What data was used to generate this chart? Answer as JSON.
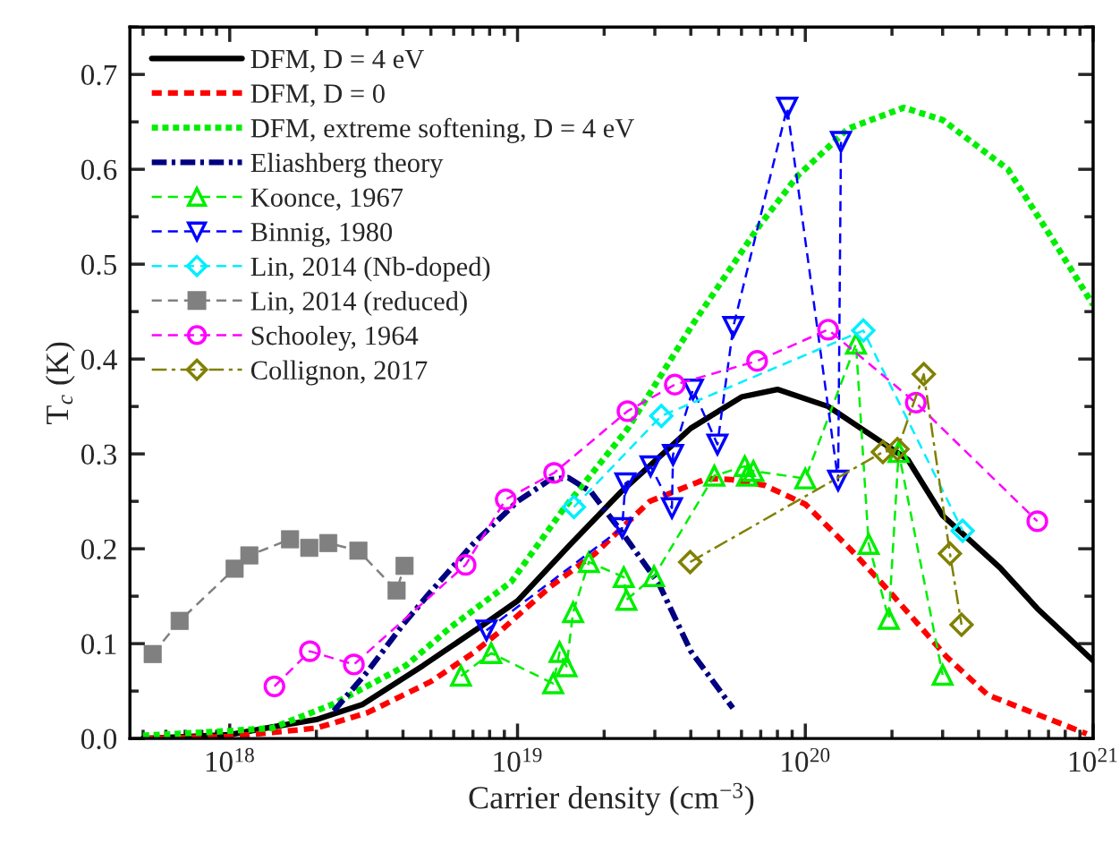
{
  "chart_data": {
    "type": "line",
    "xlabel": "Carrier density (cm$^{−3}$)",
    "ylabel": "T$_{c}$ (K)",
    "log": "x",
    "xlim": [
      4.5e+17,
      1e+21
    ],
    "ylim": [
      0,
      0.75
    ],
    "xticks": [
      {
        "value": 1e+18,
        "label": "10$^{18}$"
      },
      {
        "value": 1e+19,
        "label": "10$^{19}$"
      },
      {
        "value": 1e+20,
        "label": "10$^{20}$"
      },
      {
        "value": 1e+21,
        "label": "10$^{21}$"
      }
    ],
    "yticks": [
      {
        "value": 0,
        "label": "0.0"
      },
      {
        "value": 0.1,
        "label": "0.1"
      },
      {
        "value": 0.2,
        "label": "0.2"
      },
      {
        "value": 0.3,
        "label": "0.3"
      },
      {
        "value": 0.4,
        "label": "0.4"
      },
      {
        "value": 0.5,
        "label": "0.5"
      },
      {
        "value": 0.6,
        "label": "0.6"
      },
      {
        "value": 0.7,
        "label": "0.7"
      }
    ],
    "grid": false,
    "legend": "top left",
    "series": [
      {
        "name": "DFM, D = 4 eV",
        "color": "#000000",
        "marker": "none",
        "line_style": "solid",
        "x": [
          5e+17,
          1e+18,
          1.4e+18,
          2e+18,
          2.9e+18,
          4.7e+18,
          7.7e+18,
          1e+19,
          1.53e+19,
          2.29e+19,
          4e+19,
          6e+19,
          8e+19,
          1.2e+20,
          2.27e+20,
          3e+20,
          4.75e+20,
          6.4e+20,
          1e+21
        ],
        "values": [
          0.0,
          0.004,
          0.012,
          0.02,
          0.036,
          0.077,
          0.121,
          0.145,
          0.205,
          0.26,
          0.327,
          0.36,
          0.368,
          0.35,
          0.294,
          0.235,
          0.18,
          0.137,
          0.082
        ]
      },
      {
        "name": "DFM, D = 0",
        "color": "#ff0000",
        "marker": "none",
        "line_style": "dashed",
        "x": [
          5e+17,
          1e+18,
          2e+18,
          3e+18,
          5e+18,
          7e+18,
          8.7e+18,
          1.3e+19,
          1.86e+19,
          2.88e+19,
          4.55e+19,
          5.5e+19,
          7.2e+19,
          1e+20,
          1.43e+20,
          2e+20,
          3.1e+20,
          4.3e+20,
          7.1e+20,
          9.5e+20
        ],
        "values": [
          0.0,
          0.002,
          0.011,
          0.027,
          0.06,
          0.09,
          0.113,
          0.16,
          0.195,
          0.25,
          0.274,
          0.273,
          0.267,
          0.247,
          0.2,
          0.152,
          0.086,
          0.046,
          0.02,
          0.005
        ]
      },
      {
        "name": "DFM, extreme softening, D = 4 eV",
        "color": "#00ee00",
        "marker": "none",
        "line_style": "dotted",
        "x": [
          5e+17,
          1e+18,
          1.4e+18,
          2.28e+18,
          4.1e+18,
          5.9e+18,
          9.5e+18,
          1.43e+19,
          2.42e+19,
          4.07e+19,
          6.9e+19,
          9.4e+19,
          1.41e+20,
          2.2e+20,
          3e+20,
          5.06e+20,
          7.1e+20,
          1e+21
        ],
        "values": [
          0.003,
          0.008,
          0.011,
          0.036,
          0.077,
          0.118,
          0.165,
          0.24,
          0.327,
          0.437,
          0.54,
          0.593,
          0.643,
          0.665,
          0.652,
          0.6,
          0.53,
          0.457
        ]
      },
      {
        "name": "Eliashberg theory",
        "color": "#000080",
        "marker": "none",
        "line_style": "dashdot",
        "x": [
          2.3e+18,
          3e+18,
          4e+18,
          5e+18,
          7e+18,
          1e+19,
          1.3e+19,
          1.5e+19,
          1.8e+19,
          2.31e+19,
          3.1e+19,
          4e+19,
          5.6e+19
        ],
        "values": [
          0.029,
          0.07,
          0.12,
          0.155,
          0.205,
          0.25,
          0.273,
          0.275,
          0.26,
          0.217,
          0.163,
          0.092,
          0.032
        ]
      },
      {
        "name": "Koonce, 1967",
        "color": "#00ee00",
        "marker": "triangle",
        "line_style": "dashed",
        "x": [
          6.36e+18,
          8.1e+18,
          1.33e+19,
          1.4e+19,
          1.48e+19,
          1.56e+19,
          1.77e+19,
          2.34e+19,
          2.39e+19,
          2.98e+19,
          4.83e+19,
          6.16e+19,
          6.27e+19,
          6.6e+19,
          1e+20,
          1.5e+20,
          1.66e+20,
          1.95e+20,
          2.11e+20,
          3e+20
        ],
        "values": [
          0.066,
          0.09,
          0.058,
          0.091,
          0.076,
          0.133,
          0.186,
          0.17,
          0.146,
          0.171,
          0.277,
          0.287,
          0.277,
          0.282,
          0.274,
          0.416,
          0.205,
          0.126,
          0.302,
          0.067
        ]
      },
      {
        "name": "Binnig, 1980",
        "color": "#0000ff",
        "marker": "triangle_down",
        "line_style": "dashed",
        "x": [
          7.8e+18,
          2.31e+19,
          2.37e+19,
          2.9e+19,
          3.44e+19,
          3.47e+19,
          4.07e+19,
          4.95e+19,
          5.62e+19,
          8.65e+19,
          1.3e+20,
          1.33e+20
        ],
        "values": [
          0.114,
          0.222,
          0.269,
          0.287,
          0.243,
          0.299,
          0.368,
          0.31,
          0.434,
          0.665,
          0.272,
          0.629
        ]
      },
      {
        "name": "Lin, 2014 (Nb-doped)",
        "color": "#00eeff",
        "marker": "diamond",
        "line_style": "dashed",
        "x": [
          1.57e+19,
          3.16e+19,
          1.59e+20,
          3.52e+20
        ],
        "values": [
          0.244,
          0.34,
          0.43,
          0.219
        ]
      },
      {
        "name": "Lin, 2014 (reduced)",
        "color": "#808080",
        "marker": "square",
        "line_style": "dashed",
        "x": [
          5.4e+17,
          6.7e+17,
          1.04e+18,
          1.17e+18,
          1.62e+18,
          1.89e+18,
          2.2e+18,
          2.8e+18,
          3.8e+18,
          4.05e+18
        ],
        "values": [
          0.089,
          0.124,
          0.179,
          0.193,
          0.21,
          0.201,
          0.206,
          0.198,
          0.156,
          0.182
        ]
      },
      {
        "name": "Schooley, 1964",
        "color": "#ff00ff",
        "marker": "circle",
        "line_style": "dashed",
        "x": [
          1.43e+18,
          1.9e+18,
          2.7e+18,
          6.6e+18,
          9.1e+18,
          1.34e+19,
          2.41e+19,
          3.52e+19,
          6.8e+19,
          1.2e+20,
          2.42e+20,
          6.4e+20
        ],
        "values": [
          0.055,
          0.092,
          0.078,
          0.183,
          0.252,
          0.28,
          0.345,
          0.373,
          0.398,
          0.431,
          0.354,
          0.229
        ]
      },
      {
        "name": "Collignon, 2017",
        "color": "#808000",
        "marker": "diamond",
        "line_style": "dashdot",
        "x": [
          3.98e+19,
          1.86e+20,
          2.09e+20,
          2.58e+20,
          3.18e+20,
          3.49e+20
        ],
        "values": [
          0.186,
          0.302,
          0.305,
          0.384,
          0.195,
          0.12
        ]
      }
    ]
  }
}
